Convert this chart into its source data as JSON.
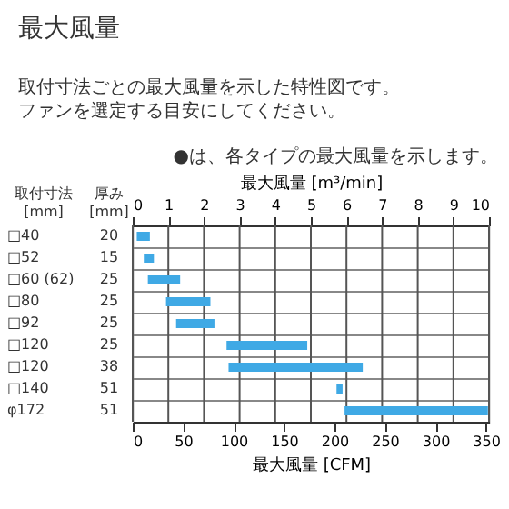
{
  "chart_data": {
    "type": "bar",
    "orientation": "horizontal",
    "title": "最大風量",
    "subtitle": [
      "取付寸法ごとの最大風量を示した特性図です。",
      "ファンを選定する目安にしてください。"
    ],
    "annotations": [
      "●は、各タイプの最大風量を示します。"
    ],
    "ylabel": [
      "取付寸法",
      "[mm]"
    ],
    "y2label": [
      "厚み",
      "[mm]"
    ],
    "categories": [
      "□40",
      "□52",
      "□60 (62)",
      "□80",
      "□92",
      "□120",
      "□120",
      "□140",
      "φ172"
    ],
    "y2_categories": [
      "20",
      "15",
      "25",
      "25",
      "25",
      "25",
      "38",
      "51",
      "51"
    ],
    "base": [
      4,
      11,
      15,
      33,
      43,
      93,
      95,
      202,
      210
    ],
    "values": [
      13,
      10,
      32,
      44,
      38,
      80,
      133,
      6,
      142
    ],
    "color": "#3fa9e5",
    "xlabel": "最大風量 [CFM]",
    "xlim": [
      0,
      353.1
    ],
    "xticks": [
      0,
      50,
      100,
      150,
      200,
      250,
      300,
      350
    ],
    "x2label": "最大風量 [m³/min]",
    "x2lim": [
      0,
      10
    ],
    "x2ticks": [
      0,
      1,
      2,
      3,
      4,
      5,
      6,
      7,
      8,
      9,
      10
    ],
    "grid": true
  }
}
